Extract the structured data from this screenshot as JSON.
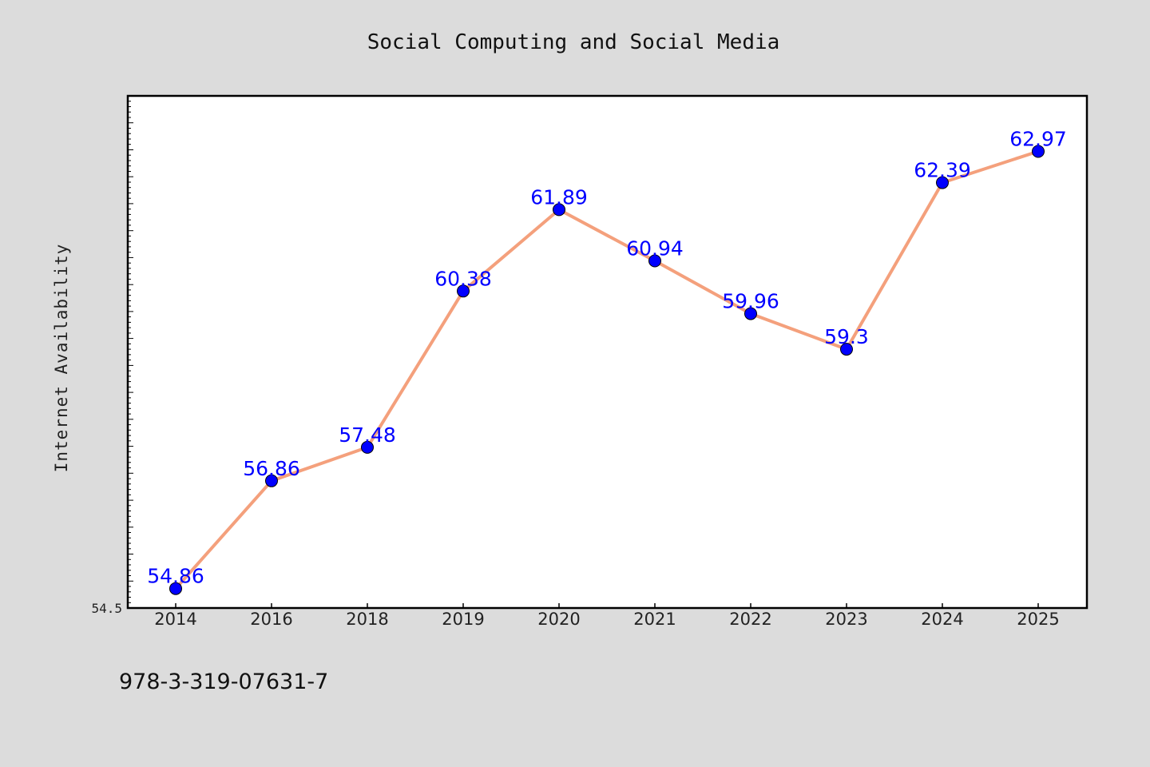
{
  "colors": {
    "background": "#dcdcdc",
    "plot_background": "#ffffff",
    "line": "#f4a07c",
    "marker": "#0000ff",
    "data_label": "#0000ff"
  },
  "footer_text": "978-3-319-07631-7",
  "chart_data": {
    "type": "line",
    "title": "Social Computing and Social Media",
    "ylabel": "Internet Availability",
    "xlabel": "",
    "categories": [
      "2014",
      "2016",
      "2018",
      "2019",
      "2020",
      "2021",
      "2022",
      "2023",
      "2024",
      "2025"
    ],
    "series": [
      {
        "values": [
          54.86,
          56.86,
          57.48,
          60.38,
          61.89,
          60.94,
          59.96,
          59.3,
          62.39,
          62.97
        ],
        "labels": [
          "54.86",
          "56.86",
          "57.48",
          "60.38",
          "61.89",
          "60.94",
          "59.96",
          "59.3",
          "62.39",
          "62.97"
        ]
      }
    ],
    "ylim": [
      54.5,
      64.0
    ],
    "yticks": [
      "54.5"
    ],
    "grid": false,
    "legend": "none"
  }
}
